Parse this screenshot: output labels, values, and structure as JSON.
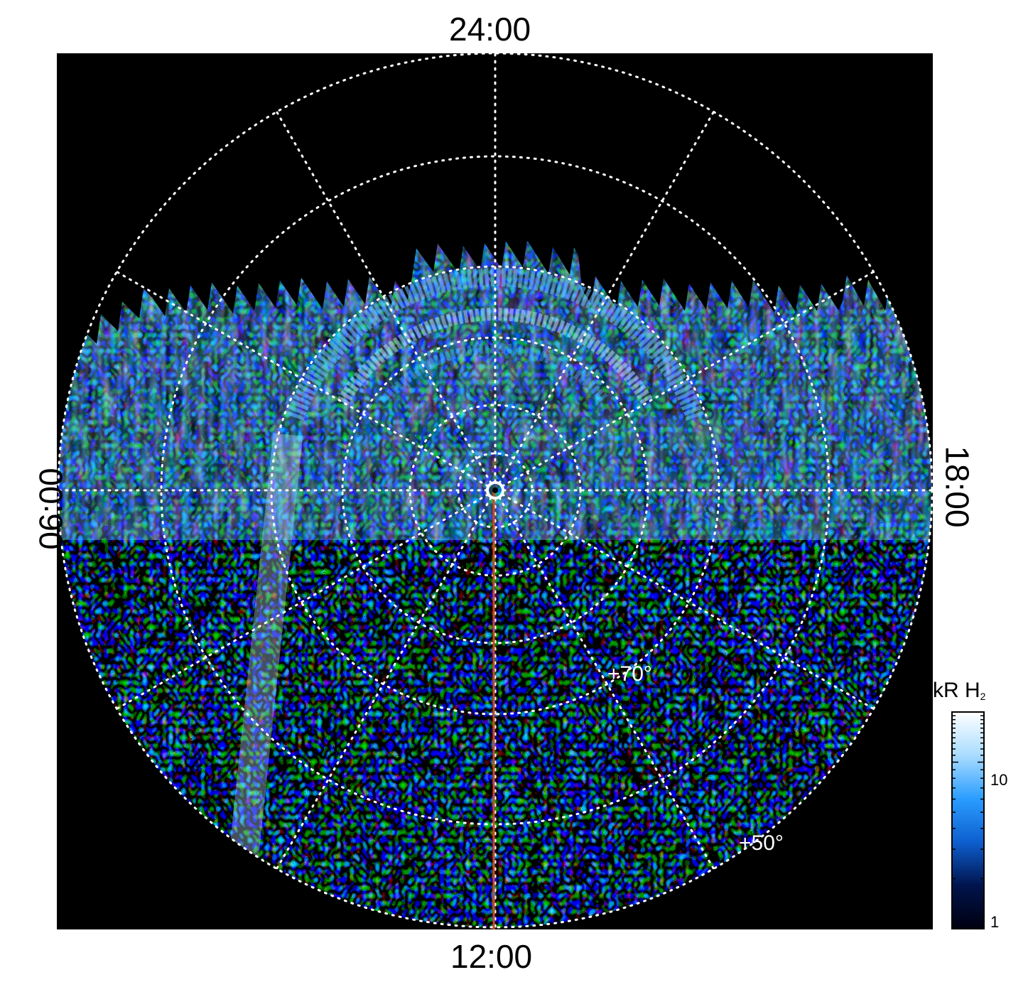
{
  "plot": {
    "type": "polar-projection-map",
    "background": "#000000",
    "time_labels": {
      "top": "24:00",
      "bottom": "12:00",
      "left": "06:00",
      "right": "18:00"
    },
    "latitude_labels": [
      "+70°",
      "+50°"
    ],
    "marker_line_color": "#d2461a"
  },
  "colorbar": {
    "title": "kR H",
    "title_subscript": "2",
    "ticks": [
      "10",
      "1"
    ],
    "scale": "log",
    "range": [
      1,
      20
    ],
    "colors": [
      "#000010",
      "#00144d",
      "#0d5fcf",
      "#2a9dff",
      "#a9dcff",
      "#ffffff"
    ]
  }
}
